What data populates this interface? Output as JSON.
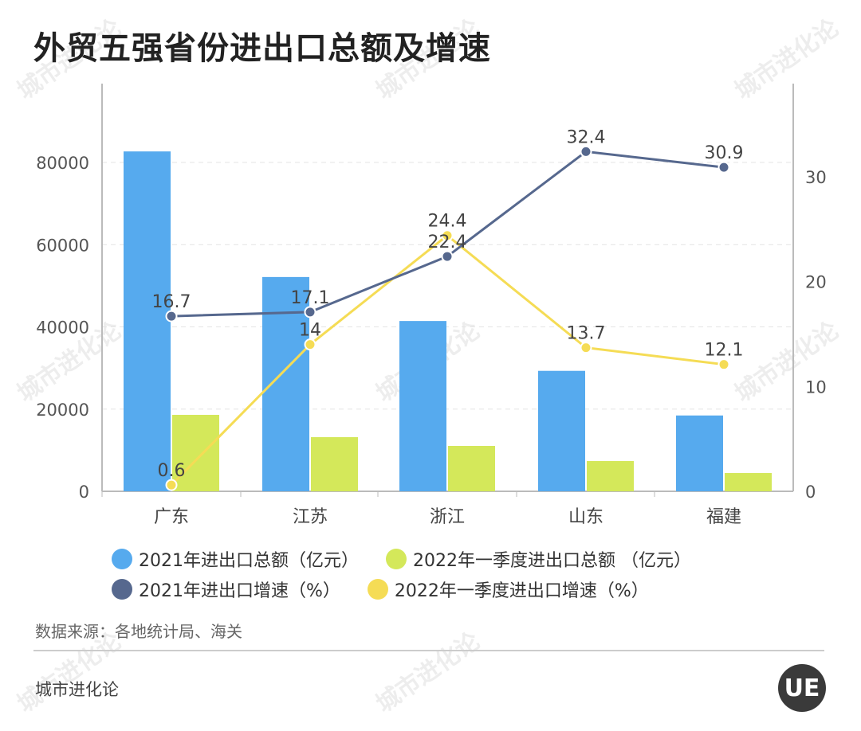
{
  "title": "外贸五强省份进出口总额及增速",
  "source": "数据来源：各地统计局、海关",
  "brand": "城市进化论",
  "logo_text": "UE",
  "watermark": "城市进化论 URBAN EVOLUTION",
  "chart_data": {
    "type": "bar+line",
    "categories": [
      "广东",
      "江苏",
      "浙江",
      "山东",
      "福建"
    ],
    "y_left": {
      "ylim": [
        0,
        80000
      ],
      "ticks": [
        "0",
        "20000",
        "40000",
        "60000",
        "80000"
      ]
    },
    "y_right": {
      "ylim": [
        0,
        35
      ],
      "ticks": [
        "0",
        "10",
        "20",
        "30"
      ]
    },
    "grid": true,
    "legend_position": "bottom",
    "series": [
      {
        "name": "2021年进出口总额（亿元）",
        "type": "bar",
        "axis": "left",
        "color": "#56aaee",
        "values": [
          82680,
          52130,
          41429,
          29304,
          18449
        ]
      },
      {
        "name": "2022年一季度进出口总额 （亿元）",
        "type": "bar",
        "axis": "left",
        "color": "#d4e85a",
        "values": [
          18600,
          13170,
          11040,
          7360,
          4450
        ]
      },
      {
        "name": "2021年进出口增速（%）",
        "type": "line",
        "axis": "right",
        "color": "#56688e",
        "values": [
          16.7,
          17.1,
          22.4,
          32.4,
          30.9
        ],
        "labels": [
          "16.7",
          "17.1",
          "22.4",
          "32.4",
          "30.9"
        ]
      },
      {
        "name": "2022年一季度进出口增速（%）",
        "type": "line",
        "axis": "right",
        "color": "#f5dc55",
        "values": [
          0.6,
          14,
          24.4,
          13.7,
          12.1
        ],
        "labels": [
          "0.6",
          "14",
          "24.4",
          "13.7",
          "12.1"
        ]
      }
    ]
  }
}
